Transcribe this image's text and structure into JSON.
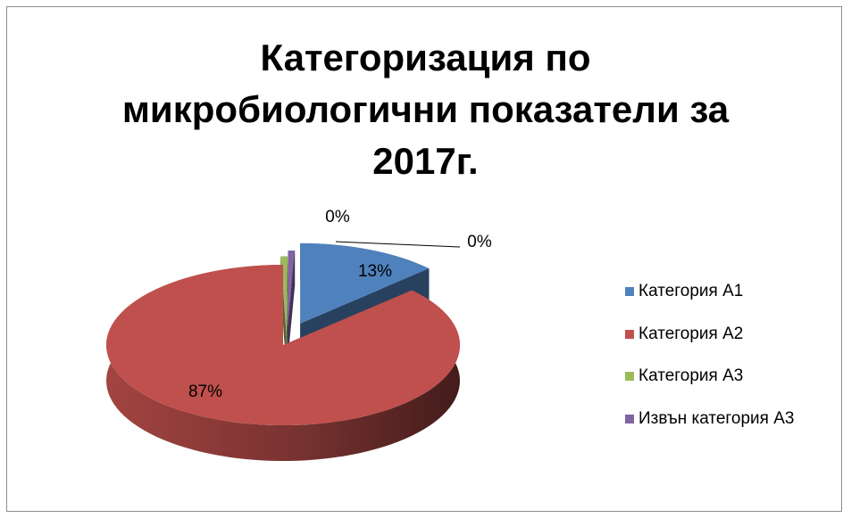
{
  "chart_data": {
    "type": "pie",
    "title_lines": [
      "Категоризация по",
      "микробиологични показатели за",
      "2017г."
    ],
    "categories": [
      "Категория А1",
      "Категория А2",
      "Категория А3",
      "Извън категория А3"
    ],
    "values": [
      13,
      87,
      0,
      0
    ],
    "data_labels": [
      "13%",
      "87%",
      "0%",
      "0%"
    ],
    "colors": [
      "#4f81bd",
      "#c0504d",
      "#9bbb59",
      "#8064a2"
    ],
    "legend_position": "right",
    "style": "3d-exploded"
  }
}
